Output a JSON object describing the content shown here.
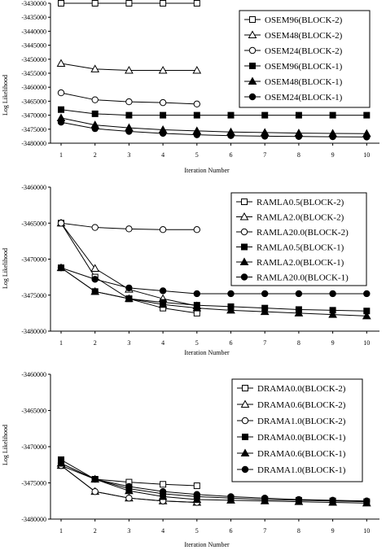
{
  "chart_data": [
    {
      "type": "line",
      "ylabel": "Log Likelihood",
      "xlabel": "Iteration Number",
      "x_ticks": [
        1,
        2,
        3,
        4,
        5,
        6,
        7,
        8,
        9,
        10
      ],
      "ylim": [
        -3480000,
        -3430000
      ],
      "y_ticks": [
        -3430000,
        -3435000,
        -3440000,
        -3445000,
        -3450000,
        -3455000,
        -3460000,
        -3465000,
        -3470000,
        -3475000,
        -3480000
      ],
      "y_tick_labels": [
        "-3430000",
        "-3435000",
        "-3440000",
        "-3445000",
        "-3450000",
        "-3455000",
        "-3460000",
        "-3465000",
        "-3470000",
        "-3475000",
        "-3480000"
      ],
      "grid": false,
      "legend_position": "right",
      "series": [
        {
          "name": "OSEM96(BLOCK-2)",
          "marker": "square-open",
          "x": [
            1,
            2,
            3,
            4,
            5
          ],
          "y": [
            -3430000,
            -3430000,
            -3430000,
            -3430000,
            -3430000
          ]
        },
        {
          "name": "OSEM48(BLOCK-2)",
          "marker": "triangle-open",
          "x": [
            1,
            2,
            3,
            4,
            5
          ],
          "y": [
            -3451500,
            -3453500,
            -3454000,
            -3454000,
            -3454000
          ]
        },
        {
          "name": "OSEM24(BLOCK-2)",
          "marker": "circle-open",
          "x": [
            1,
            2,
            3,
            4,
            5
          ],
          "y": [
            -3462000,
            -3464500,
            -3465200,
            -3465500,
            -3466000
          ]
        },
        {
          "name": "OSEM96(BLOCK-1)",
          "marker": "square-filled",
          "x": [
            1,
            2,
            3,
            4,
            5,
            6,
            7,
            8,
            9,
            10
          ],
          "y": [
            -3468000,
            -3469500,
            -3470000,
            -3470000,
            -3470000,
            -3470000,
            -3470000,
            -3470000,
            -3470000,
            -3470000
          ]
        },
        {
          "name": "OSEM48(BLOCK-1)",
          "marker": "triangle-filled",
          "x": [
            1,
            2,
            3,
            4,
            5,
            6,
            7,
            8,
            9,
            10
          ],
          "y": [
            -3471000,
            -3473500,
            -3474500,
            -3475200,
            -3475600,
            -3476000,
            -3476200,
            -3476400,
            -3476500,
            -3476600
          ]
        },
        {
          "name": "OSEM24(BLOCK-1)",
          "marker": "circle-filled",
          "x": [
            1,
            2,
            3,
            4,
            5,
            6,
            7,
            8,
            9,
            10
          ],
          "y": [
            -3472500,
            -3474800,
            -3475800,
            -3476500,
            -3477000,
            -3477300,
            -3477500,
            -3477600,
            -3477700,
            -3477800
          ]
        }
      ]
    },
    {
      "type": "line",
      "ylabel": "Log Likelihood",
      "xlabel": "Iteration Number",
      "x_ticks": [
        1,
        2,
        3,
        4,
        5,
        6,
        7,
        8,
        9,
        10
      ],
      "ylim": [
        -3480000,
        -3460000
      ],
      "y_ticks": [
        -3460000,
        -3465000,
        -3470000,
        -3475000,
        -3480000
      ],
      "y_tick_labels": [
        "-3460000",
        "-3465000",
        "-3470000",
        "-3475000",
        "-3480000"
      ],
      "grid": false,
      "legend_position": "right",
      "series": [
        {
          "name": "RAMLA0.5(BLOCK-2)",
          "marker": "square-open",
          "x": [
            1,
            2,
            3,
            4,
            5
          ],
          "y": [
            -3465000,
            -3472500,
            -3475500,
            -3476800,
            -3477500
          ]
        },
        {
          "name": "RAMLA2.0(BLOCK-2)",
          "marker": "triangle-open",
          "x": [
            1,
            2,
            3,
            4,
            5
          ],
          "y": [
            -3465000,
            -3471300,
            -3474200,
            -3475500,
            -3476500
          ]
        },
        {
          "name": "RAMLA20.0(BLOCK-2)",
          "marker": "circle-open",
          "x": [
            1,
            2,
            3,
            4,
            5
          ],
          "y": [
            -3465000,
            -3465600,
            -3465800,
            -3465900,
            -3465900
          ]
        },
        {
          "name": "RAMLA0.5(BLOCK-1)",
          "marker": "square-filled",
          "x": [
            1,
            2,
            3,
            4,
            5,
            6,
            7,
            8,
            9,
            10
          ],
          "y": [
            -3471200,
            -3474500,
            -3475500,
            -3476000,
            -3476400,
            -3476600,
            -3476800,
            -3477000,
            -3477100,
            -3477200
          ]
        },
        {
          "name": "RAMLA2.0(BLOCK-1)",
          "marker": "triangle-filled",
          "x": [
            1,
            2,
            3,
            4,
            5,
            6,
            7,
            8,
            9,
            10
          ],
          "y": [
            -3471200,
            -3474500,
            -3475500,
            -3476300,
            -3476800,
            -3477100,
            -3477300,
            -3477500,
            -3477700,
            -3477900
          ]
        },
        {
          "name": "RAMLA20.0(BLOCK-1)",
          "marker": "circle-filled",
          "x": [
            1,
            2,
            3,
            4,
            5,
            6,
            7,
            8,
            9,
            10
          ],
          "y": [
            -3471200,
            -3472800,
            -3474000,
            -3474400,
            -3474800,
            -3474800,
            -3474800,
            -3474800,
            -3474800,
            -3474800
          ]
        }
      ]
    },
    {
      "type": "line",
      "ylabel": "Log Likelihood",
      "xlabel": "Iteration Number",
      "x_ticks": [
        1,
        2,
        3,
        4,
        5,
        6,
        7,
        8,
        9,
        10
      ],
      "ylim": [
        -3480000,
        -3460000
      ],
      "y_ticks": [
        -3460000,
        -3465000,
        -3470000,
        -3475000,
        -3480000
      ],
      "y_tick_labels": [
        "-3460000",
        "-3465000",
        "-3470000",
        "-3475000",
        "-3480000"
      ],
      "grid": false,
      "legend_position": "right",
      "series": [
        {
          "name": "DRAMA0.0(BLOCK-2)",
          "marker": "square-open",
          "x": [
            1,
            2,
            3,
            4,
            5
          ],
          "y": [
            -3472600,
            -3474500,
            -3474900,
            -3475200,
            -3475400
          ]
        },
        {
          "name": "DRAMA0.6(BLOCK-2)",
          "marker": "triangle-open",
          "x": [
            1,
            2,
            3,
            4,
            5
          ],
          "y": [
            -3472600,
            -3476200,
            -3477100,
            -3477500,
            -3477700
          ]
        },
        {
          "name": "DRAMA1.0(BLOCK-2)",
          "marker": "circle-open",
          "x": [
            1,
            2,
            3,
            4,
            5
          ],
          "y": [
            -3472600,
            -3476200,
            -3477100,
            -3477500,
            -3477700
          ]
        },
        {
          "name": "DRAMA0.0(BLOCK-1)",
          "marker": "square-filled",
          "x": [
            1,
            2,
            3,
            4,
            5,
            6,
            7,
            8,
            9,
            10
          ],
          "y": [
            -3471800,
            -3474500,
            -3475800,
            -3476500,
            -3476900,
            -3477100,
            -3477300,
            -3477400,
            -3477500,
            -3477600
          ]
        },
        {
          "name": "DRAMA0.6(BLOCK-1)",
          "marker": "triangle-filled",
          "x": [
            1,
            2,
            3,
            4,
            5,
            6,
            7,
            8,
            9,
            10
          ],
          "y": [
            -3472300,
            -3474500,
            -3476100,
            -3476900,
            -3477300,
            -3477400,
            -3477500,
            -3477600,
            -3477700,
            -3477800
          ]
        },
        {
          "name": "DRAMA1.0(BLOCK-1)",
          "marker": "circle-filled",
          "x": [
            1,
            2,
            3,
            4,
            5,
            6,
            7,
            8,
            9,
            10
          ],
          "y": [
            -3472300,
            -3474500,
            -3475500,
            -3476200,
            -3476600,
            -3476900,
            -3477100,
            -3477300,
            -3477400,
            -3477500
          ]
        }
      ]
    }
  ]
}
